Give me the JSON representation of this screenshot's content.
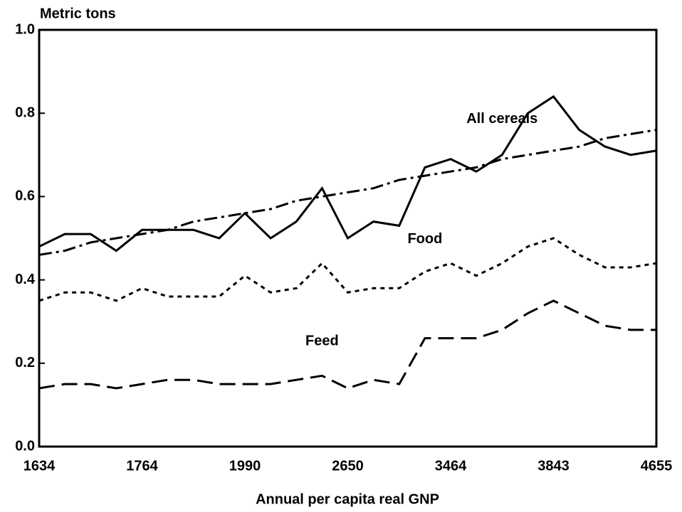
{
  "chart_data": {
    "type": "line",
    "ylabel": "Metric tons",
    "xlabel": "Annual per capita real GNP",
    "categories": [
      "1634",
      null,
      null,
      null,
      "1764",
      null,
      null,
      null,
      "1990",
      null,
      null,
      null,
      "2650",
      null,
      null,
      null,
      "3464",
      null,
      null,
      null,
      "3843",
      null,
      null,
      null,
      "4655"
    ],
    "ylim": [
      0,
      1.0
    ],
    "yticks": [
      {
        "value": 0,
        "label": "0.0"
      },
      0.2,
      0.4,
      0.6,
      0.8,
      {
        "value": 1.0,
        "label": "1.0"
      }
    ],
    "series": [
      {
        "name": "All cereals",
        "color": "#000000",
        "style": "solid",
        "values": [
          0.48,
          0.51,
          0.51,
          0.47,
          0.52,
          0.52,
          0.52,
          0.5,
          0.56,
          0.5,
          0.54,
          0.62,
          0.5,
          0.54,
          0.53,
          0.67,
          0.69,
          0.66,
          0.7,
          0.8,
          0.84,
          0.76,
          0.72,
          0.7,
          0.71
        ]
      },
      {
        "color": "#000000",
        "style": "dashdot",
        "values": [
          0.46,
          0.47,
          0.49,
          0.5,
          0.51,
          0.52,
          0.54,
          0.55,
          0.56,
          0.57,
          0.59,
          0.6,
          0.61,
          0.62,
          0.64,
          0.65,
          0.66,
          0.67,
          0.69,
          0.7,
          0.71,
          0.72,
          0.74,
          0.75,
          0.76
        ]
      },
      {
        "name": "Food",
        "color": "#000000",
        "style": "dotted",
        "values": [
          0.35,
          0.37,
          0.37,
          0.35,
          0.38,
          0.36,
          0.36,
          0.36,
          0.41,
          0.37,
          0.38,
          0.44,
          0.37,
          0.38,
          0.38,
          0.42,
          0.44,
          0.41,
          0.44,
          0.48,
          0.5,
          0.46,
          0.43,
          0.43,
          0.44
        ]
      },
      {
        "name": "Feed",
        "color": "#000000",
        "style": "dashed",
        "values": [
          0.14,
          0.15,
          0.15,
          0.14,
          0.15,
          0.16,
          0.16,
          0.15,
          0.15,
          0.15,
          0.16,
          0.17,
          0.14,
          0.16,
          0.15,
          0.26,
          0.26,
          0.26,
          0.28,
          0.32,
          0.35,
          0.32,
          0.29,
          0.28,
          0.28
        ]
      }
    ]
  }
}
